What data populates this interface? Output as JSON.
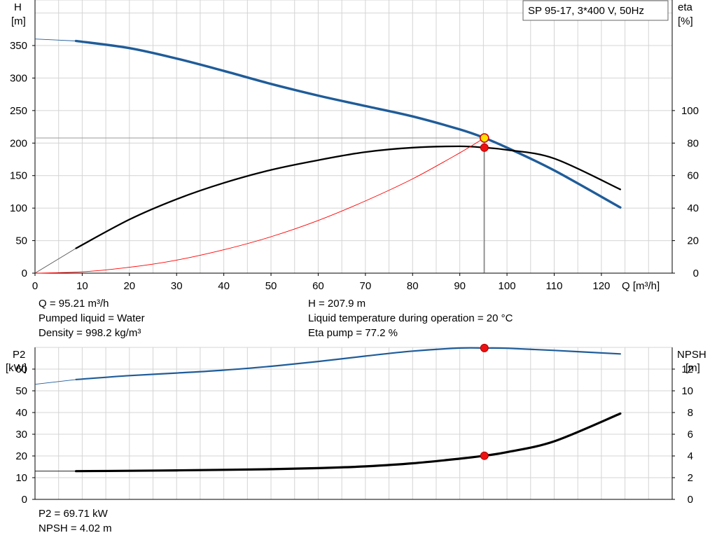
{
  "chart_data": [
    {
      "type": "line",
      "title": "SP 95-17, 3*400 V, 50Hz",
      "xlabel": "Q [m³/h]",
      "xlim": [
        0,
        135
      ],
      "xticks": [
        0,
        10,
        20,
        30,
        40,
        50,
        60,
        70,
        80,
        90,
        100,
        110,
        120
      ],
      "y_left": {
        "label_line1": "H",
        "label_line2": "[m]",
        "lim": [
          0,
          420
        ],
        "ticks": [
          0,
          50,
          100,
          150,
          200,
          250,
          300,
          350
        ]
      },
      "y_right": {
        "label_line1": "eta",
        "label_line2": "[%]",
        "lim": [
          0,
          168
        ],
        "ticks": [
          0,
          20,
          40,
          60,
          80,
          100
        ]
      },
      "grid": true,
      "series": [
        {
          "key": "head",
          "axis": "left",
          "color": "#1f5c99",
          "x": [
            0,
            8.7,
            20,
            30,
            40,
            50,
            60,
            70,
            80,
            90,
            95.21,
            100,
            110,
            124
          ],
          "y": [
            360,
            357,
            346,
            330,
            311,
            291,
            273,
            257,
            241,
            221,
            207.9,
            193,
            158,
            101
          ]
        },
        {
          "key": "eta",
          "axis": "right",
          "color": "#000000",
          "x": [
            0,
            8.7,
            20,
            30,
            40,
            50,
            60,
            70,
            80,
            90,
            95.21,
            100,
            110,
            124
          ],
          "y": [
            0,
            15.3,
            33,
            45.5,
            55.5,
            63.5,
            69.5,
            74.5,
            77.2,
            78,
            77.2,
            75.8,
            70.5,
            51.5
          ]
        },
        {
          "key": "system",
          "axis": "left",
          "color": "#ff0000",
          "x": [
            0,
            10,
            20,
            30,
            40,
            50,
            60,
            70,
            80,
            90,
            95.21
          ],
          "y": [
            0,
            2,
            9,
            20,
            36,
            56,
            81,
            111,
            145,
            185,
            207.9
          ]
        }
      ],
      "duty_point": {
        "q": 95.21,
        "h": 207.9,
        "eta": 77.2
      }
    },
    {
      "type": "line",
      "xlim": [
        0,
        135
      ],
      "y_left": {
        "label_line1": "P2",
        "label_line2": "[kW]",
        "lim": [
          0,
          70
        ],
        "ticks": [
          0,
          10,
          20,
          30,
          40,
          50,
          60
        ]
      },
      "y_right": {
        "label_line1": "NPSH",
        "label_line2": "[m]",
        "lim": [
          0,
          14
        ],
        "ticks": [
          0,
          2,
          4,
          6,
          8,
          10,
          12
        ]
      },
      "grid": true,
      "series": [
        {
          "key": "p2",
          "axis": "left",
          "color": "#1f5c99",
          "x": [
            0,
            8.7,
            20,
            30,
            40,
            50,
            60,
            70,
            80,
            90,
            95.21,
            100,
            110,
            124
          ],
          "y": [
            53,
            55.2,
            57,
            58.2,
            59.5,
            61.3,
            63.5,
            66,
            68.3,
            69.7,
            69.71,
            69.6,
            68.6,
            67
          ]
        },
        {
          "key": "npsh",
          "axis": "right",
          "color": "#000000",
          "x": [
            0,
            8.7,
            20,
            30,
            40,
            50,
            60,
            70,
            80,
            90,
            95.21,
            100,
            110,
            124
          ],
          "y": [
            2.6,
            2.6,
            2.63,
            2.67,
            2.72,
            2.78,
            2.88,
            3.04,
            3.32,
            3.75,
            4.02,
            4.35,
            5.35,
            7.9
          ]
        }
      ],
      "duty_point": {
        "q": 95.21,
        "p2": 69.71,
        "npsh": 4.02
      }
    }
  ],
  "info": {
    "q": "Q = 95.21 m³/h",
    "h": "H = 207.9 m",
    "liquid": "Pumped liquid = Water",
    "temperature": "Liquid temperature during operation = 20 °C",
    "density": "Density = 998.2 kg/m³",
    "eta_pump": "Eta pump = 77.2 %",
    "p2": "P2 = 69.71 kW",
    "npsh": "NPSH = 4.02 m"
  }
}
